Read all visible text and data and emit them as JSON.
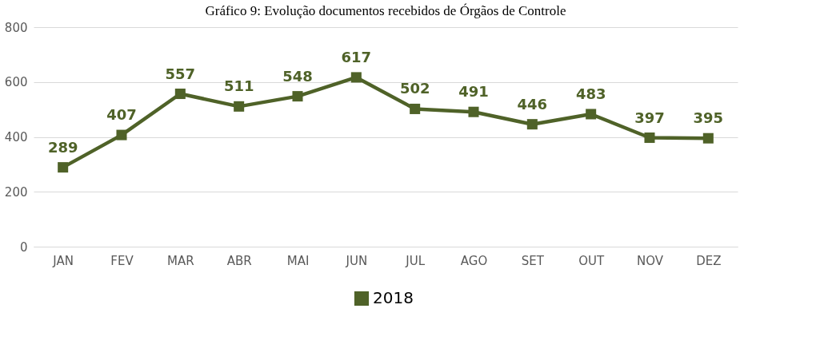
{
  "chart_data": {
    "type": "line",
    "title": "Gráfico 9: Evolução  documentos recebidos de Órgãos de Controle",
    "categories": [
      "JAN",
      "FEV",
      "MAR",
      "ABR",
      "MAI",
      "JUN",
      "JUL",
      "AGO",
      "SET",
      "OUT",
      "NOV",
      "DEZ"
    ],
    "series": [
      {
        "name": "2018",
        "color": "#4f6228",
        "values": [
          289,
          407,
          557,
          511,
          548,
          617,
          502,
          491,
          446,
          483,
          397,
          395
        ]
      }
    ],
    "ylim": [
      0,
      800
    ],
    "yticks": [
      0,
      200,
      400,
      600,
      800
    ],
    "grid": "y",
    "legend": "bottom",
    "marker": "square",
    "line_style": "solid",
    "data_labels": true
  }
}
